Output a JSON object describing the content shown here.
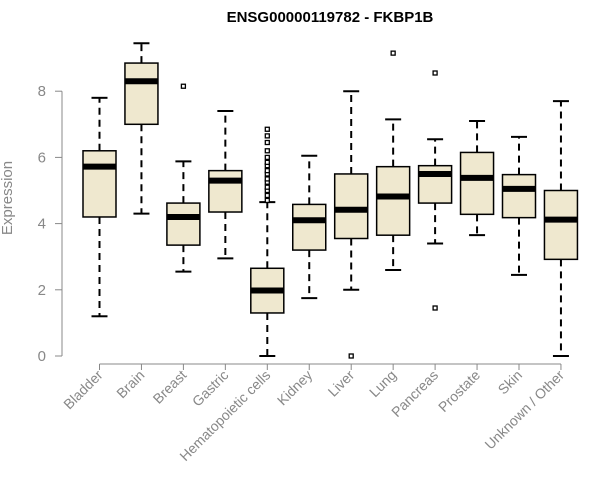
{
  "chart_data": {
    "type": "boxplot",
    "title": "ENSG00000119782 - FKBP1B",
    "xlabel": "",
    "ylabel": "Expression",
    "ylim": [
      0,
      9.5
    ],
    "yticks": [
      0,
      2,
      4,
      6,
      8
    ],
    "grid": false,
    "box_fill": "#efe8cf",
    "categories": [
      "Bladder",
      "Brain",
      "Breast",
      "Gastric",
      "Hematopoietic cells",
      "Kidney",
      "Liver",
      "Lung",
      "Pancreas",
      "Prostate",
      "Skin",
      "Unknown / Other"
    ],
    "boxes": [
      {
        "min": 1.2,
        "q1": 4.2,
        "median": 5.72,
        "q3": 6.2,
        "max": 7.8,
        "outliers": []
      },
      {
        "min": 4.3,
        "q1": 7.0,
        "median": 8.3,
        "q3": 8.85,
        "max": 9.45,
        "outliers": []
      },
      {
        "min": 2.55,
        "q1": 3.35,
        "median": 4.2,
        "q3": 4.62,
        "max": 5.88,
        "outliers": [
          8.15
        ]
      },
      {
        "min": 2.95,
        "q1": 4.35,
        "median": 5.3,
        "q3": 5.6,
        "max": 7.4,
        "outliers": []
      },
      {
        "min": 0.0,
        "q1": 1.3,
        "median": 1.98,
        "q3": 2.65,
        "max": 4.65,
        "outliers": [
          4.7,
          4.85,
          5.0,
          5.1,
          5.25,
          5.35,
          5.5,
          5.6,
          5.75,
          5.85,
          6.0,
          6.2,
          6.45,
          6.65,
          6.85
        ]
      },
      {
        "min": 1.75,
        "q1": 3.2,
        "median": 4.1,
        "q3": 4.58,
        "max": 6.05,
        "outliers": []
      },
      {
        "min": 2.0,
        "q1": 3.55,
        "median": 4.42,
        "q3": 5.5,
        "max": 8.0,
        "outliers": [
          0.0
        ]
      },
      {
        "min": 2.6,
        "q1": 3.65,
        "median": 4.82,
        "q3": 5.72,
        "max": 7.15,
        "outliers": [
          9.15
        ]
      },
      {
        "min": 3.4,
        "q1": 4.62,
        "median": 5.5,
        "q3": 5.75,
        "max": 6.55,
        "outliers": [
          8.55,
          1.45
        ]
      },
      {
        "min": 3.65,
        "q1": 4.28,
        "median": 5.38,
        "q3": 6.15,
        "max": 7.1,
        "outliers": []
      },
      {
        "min": 2.45,
        "q1": 4.18,
        "median": 5.05,
        "q3": 5.48,
        "max": 6.62,
        "outliers": []
      },
      {
        "min": 0.0,
        "q1": 2.92,
        "median": 4.12,
        "q3": 5.0,
        "max": 7.7,
        "outliers": []
      }
    ]
  }
}
